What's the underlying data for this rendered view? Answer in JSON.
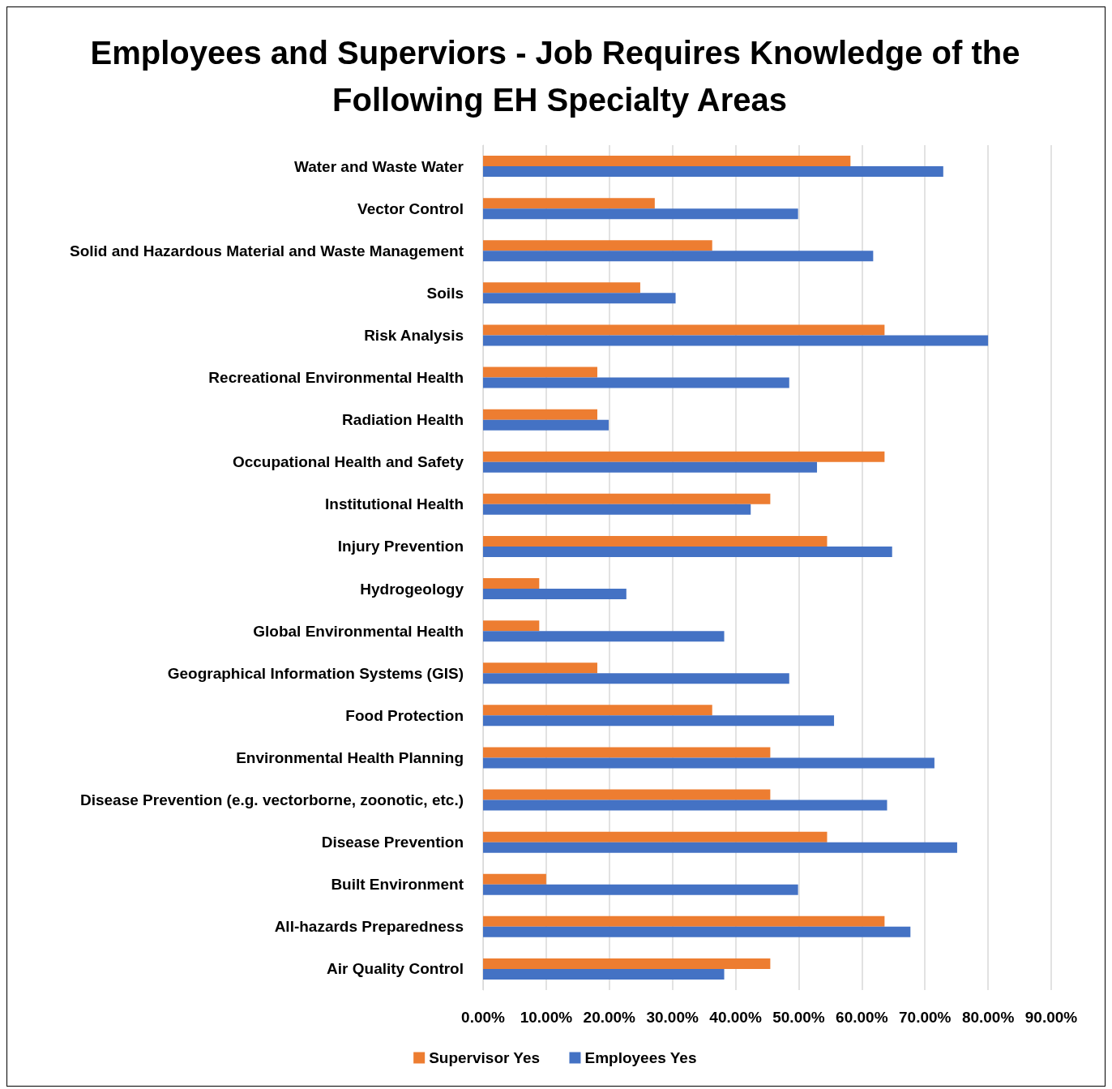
{
  "chart_data": {
    "type": "bar",
    "orientation": "horizontal",
    "title": "Employees and Superviors - Job Requires Knowledge of the Following EH Specialty Areas",
    "categories": [
      "Water and Waste Water",
      "Vector Control",
      "Solid and Hazardous Material and Waste Management",
      "Soils",
      "Risk Analysis",
      "Recreational Environmental Health",
      "Radiation Health",
      "Occupational Health and Safety",
      "Institutional Health",
      "Injury Prevention",
      "Hydrogeology",
      "Global Environmental Health",
      "Geographical Information Systems (GIS)",
      "Food Protection",
      "Environmental Health Planning",
      "Disease Prevention (e.g. vectorborne, zoonotic, etc.)",
      "Disease Prevention",
      "Built Environment",
      "All-hazards Preparedness",
      "Air Quality Control"
    ],
    "series": [
      {
        "name": "Supervisor Yes",
        "color": "#ed7d31",
        "values": [
          58.2,
          27.2,
          36.3,
          24.9,
          63.6,
          18.1,
          18.1,
          63.6,
          45.5,
          54.5,
          8.9,
          8.9,
          18.1,
          36.3,
          45.5,
          45.5,
          54.5,
          10.0,
          63.6,
          45.5
        ]
      },
      {
        "name": "Employees Yes",
        "color": "#4472c4",
        "values": [
          72.9,
          49.9,
          61.8,
          30.5,
          80.0,
          48.5,
          19.9,
          52.9,
          42.4,
          64.8,
          22.7,
          38.2,
          48.5,
          55.6,
          71.5,
          64.0,
          75.1,
          49.9,
          67.7,
          38.2
        ]
      }
    ],
    "xlim": [
      0,
      90
    ],
    "xticks": [
      {
        "value": 0,
        "label": "0.00%"
      },
      {
        "value": 10,
        "label": "10.00%"
      },
      {
        "value": 20,
        "label": "20.00%"
      },
      {
        "value": 30,
        "label": "30.00%"
      },
      {
        "value": 40,
        "label": "40.00%"
      },
      {
        "value": 50,
        "label": "50.00%"
      },
      {
        "value": 60,
        "label": "60.00%"
      },
      {
        "value": 70,
        "label": "70.00%"
      },
      {
        "value": 80,
        "label": "80.00%"
      },
      {
        "value": 90,
        "label": "90.00%"
      }
    ],
    "grid": "x",
    "legend": "bottom"
  }
}
